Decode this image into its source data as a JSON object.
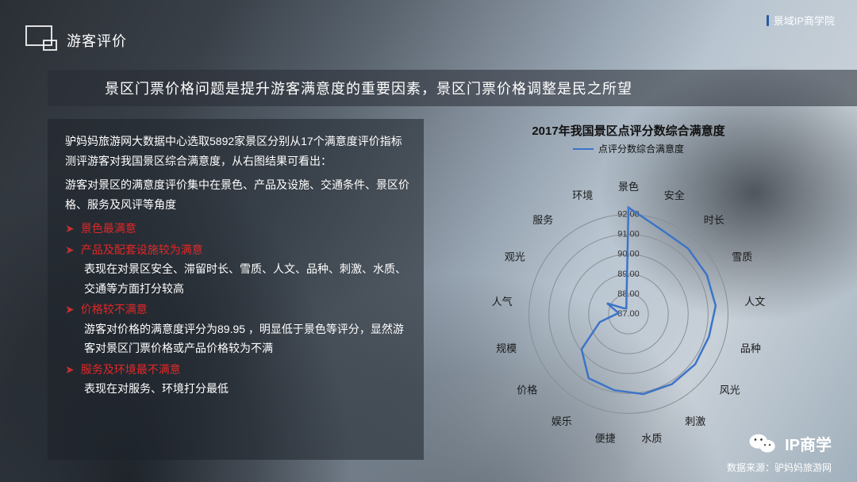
{
  "header": {
    "section_title": "游客评价",
    "brand_top_right": "景域IP商学院"
  },
  "banner": {
    "text": "景区门票价格问题是提升游客满意度的重要因素，景区门票价格调整是民之所望"
  },
  "text_card": {
    "intro": "驴妈妈旅游网大数据中心选取5892家景区分别从17个满意度评价指标测评游客对我国景区综合满意度，从右图结果可看出：",
    "lead": "游客对景区的满意度评价集中在景色、产品及设施、交通条件、景区价格、服务及风评等角度",
    "points": [
      {
        "title": "景色最满意",
        "sub": ""
      },
      {
        "title": "产品及配套设施较为满意",
        "sub": "表现在对景区安全、滞留时长、雪质、人文、品种、刺激、水质、交通等方面打分较高"
      },
      {
        "title": "价格较不满意",
        "sub": "游客对价格的满意度评分为89.95 ，明显低于景色等评分，显然游客对景区门票价格或产品价格较为不满"
      },
      {
        "title": "服务及环境最不满意",
        "sub": "表现在对服务、环境打分最低"
      }
    ],
    "bullet_color": "#c23030",
    "title_color": "#e02828"
  },
  "chart": {
    "type": "radar",
    "title": "2017年我国景区点评分数综合满意度",
    "legend_label": "点评分数综合满意度",
    "line_color": "#3d74c7",
    "ring_color": "#8a8f95",
    "label_color": "#1a1a1a",
    "ticks": [
      92.0,
      91.0,
      90.0,
      89.0,
      88.0,
      87.0
    ],
    "tick_fontsize": 11,
    "min": 87.0,
    "max": 92.5,
    "categories": [
      "景色",
      "安全",
      "时长",
      "雪质",
      "人文",
      "品种",
      "风光",
      "刺激",
      "水质",
      "便捷",
      "娱乐",
      "价格",
      "规模",
      "人气",
      "观光",
      "服务",
      "环境"
    ],
    "values": [
      92.35,
      91.55,
      91.45,
      91.4,
      91.4,
      91.2,
      91.2,
      91.15,
      91.1,
      90.9,
      90.8,
      89.95,
      88.5,
      87.5,
      88.2,
      87.4,
      87.3
    ],
    "cat_fontsize": 13
  },
  "footer": {
    "brand_name": "IP商学",
    "source": "数据来源：驴妈妈旅游网"
  }
}
